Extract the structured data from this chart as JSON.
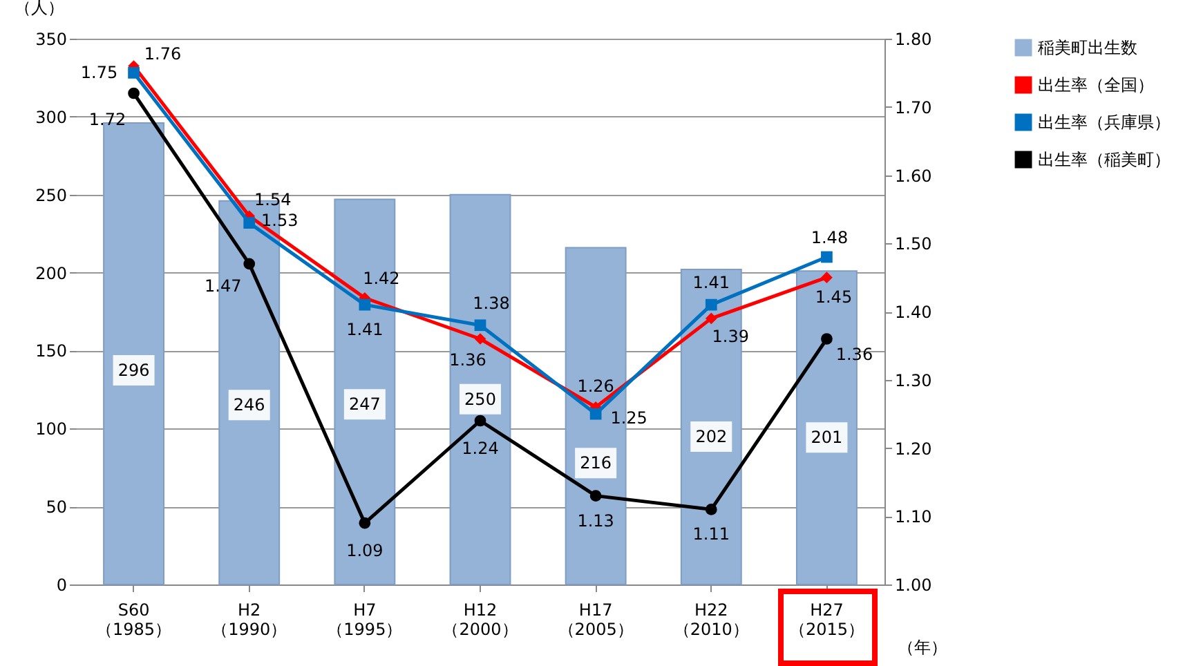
{
  "chart_data": {
    "type": "bar",
    "xlabel": "（年）",
    "ylabel": "（人）",
    "categories": [
      "S60\n（1985）",
      "H2\n（1990）",
      "H7\n（1995）",
      "H12\n（2000）",
      "H17\n（2005）",
      "H22\n（2010）",
      "H27\n（2015）"
    ],
    "series": [
      {
        "name": "稲美町出生数",
        "type": "bar",
        "color": "#95b3d7",
        "values": [
          296,
          246,
          247,
          250,
          216,
          202,
          201
        ]
      },
      {
        "name": "出生率（全国）",
        "type": "line",
        "axis": "y2",
        "color": "#ff0000",
        "marker": "diamond",
        "values": [
          1.76,
          1.54,
          1.42,
          1.36,
          1.26,
          1.39,
          1.45
        ]
      },
      {
        "name": "出生率（兵庫県）",
        "type": "line",
        "axis": "y2",
        "color": "#0070c0",
        "marker": "square",
        "values": [
          1.75,
          1.53,
          1.41,
          1.38,
          1.25,
          1.41,
          1.48
        ]
      },
      {
        "name": "出生率（稲美町）",
        "type": "line",
        "axis": "y2",
        "color": "#000000",
        "marker": "circle",
        "values": [
          1.72,
          1.47,
          1.09,
          1.24,
          1.13,
          1.11,
          1.36
        ]
      }
    ],
    "ylim": [
      0,
      350
    ],
    "yticks": [
      0,
      50,
      100,
      150,
      200,
      250,
      300,
      350
    ],
    "y2lim": [
      1,
      1.8
    ],
    "y2ticks": [
      {
        "value": 1,
        "label": "1.00"
      },
      {
        "value": 1.1,
        "label": "1.10"
      },
      {
        "value": 1.2,
        "label": "1.20"
      },
      {
        "value": 1.3,
        "label": "1.30"
      },
      {
        "value": 1.4,
        "label": "1.40"
      },
      {
        "value": 1.5,
        "label": "1.50"
      },
      {
        "value": 1.6,
        "label": "1.60"
      },
      {
        "value": 1.7,
        "label": "1.70"
      },
      {
        "value": 1.8,
        "label": "1.80"
      }
    ],
    "grid": "y",
    "legend": "right",
    "data_labels": true
  }
}
